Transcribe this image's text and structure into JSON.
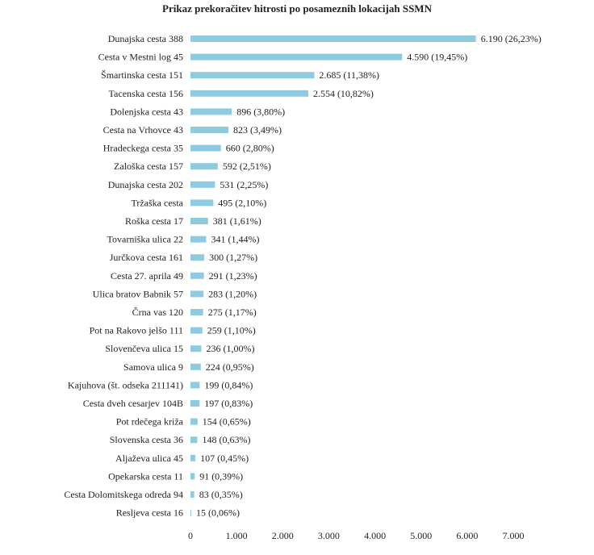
{
  "chart_data": {
    "type": "bar",
    "orientation": "horizontal",
    "title": "Prikaz prekoračitev hitrosti po posameznih lokacijah SSMN",
    "xlabel": "",
    "ylabel": "",
    "xlim": [
      0,
      7000
    ],
    "ticks": [
      0,
      1000,
      2000,
      3000,
      4000,
      5000,
      6000,
      7000
    ],
    "tick_labels": [
      "0",
      "1.000",
      "2.000",
      "3.000",
      "4.000",
      "5.000",
      "6.000",
      "7.000"
    ],
    "grid": false,
    "bar_color": "#8ecbe0",
    "categories": [
      "Dunajska cesta 388",
      "Cesta v Mestni log 45",
      "Šmartinska cesta 151",
      "Tacenska cesta 156",
      "Dolenjska cesta 43",
      "Cesta na Vrhovce 43",
      "Hradeckega cesta 35",
      "Zaloška cesta 157",
      "Dunajska cesta 202",
      "Tržaška cesta",
      "Roška cesta 17",
      "Tovarniška ulica 22",
      "Jurčkova cesta 161",
      "Cesta 27. aprila 49",
      "Ulica bratov Babnik 57",
      "Črna vas 120",
      "Pot na Rakovo jelšo 111",
      "Slovenčeva ulica 15",
      "Samova ulica 9",
      "Kajuhova (št. odseka 211141)",
      "Cesta dveh cesarjev 104B",
      "Pot rdečega križa",
      "Slovenska cesta 36",
      "Aljaževa ulica 45",
      "Opekarska cesta 11",
      "Cesta Dolomitskega odreda 94",
      "Resljeva cesta 16"
    ],
    "values": [
      6190,
      4590,
      2685,
      2554,
      896,
      823,
      660,
      592,
      531,
      495,
      381,
      341,
      300,
      291,
      283,
      275,
      259,
      236,
      224,
      199,
      197,
      154,
      148,
      107,
      91,
      83,
      15
    ],
    "data_labels": [
      "6.190 (26,23%)",
      "4.590 (19,45%)",
      "2.685 (11,38%)",
      "2.554 (10,82%)",
      "896 (3,80%)",
      "823 (3,49%)",
      "660 (2,80%)",
      "592 (2,51%)",
      "531 (2,25%)",
      "495 (2,10%)",
      "381 (1,61%)",
      "341 (1,44%)",
      "300 (1,27%)",
      "291 (1,23%)",
      "283 (1,20%)",
      "275 (1,17%)",
      "259 (1,10%)",
      "236 (1,00%)",
      "224 (0,95%)",
      "199 (0,84%)",
      "197 (0,83%)",
      "154 (0,65%)",
      "148 (0,63%)",
      "107 (0,45%)",
      "91 (0,39%)",
      "83 (0,35%)",
      "15 (0,06%)"
    ]
  }
}
